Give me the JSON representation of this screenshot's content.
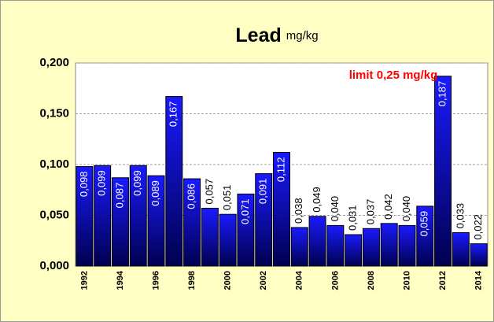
{
  "chart_data": {
    "type": "bar",
    "title": "Lead",
    "subtitle": "mg/kg",
    "annotation": "limit 0,25 mg/kg",
    "categories": [
      "1992",
      null,
      "1994",
      null,
      "1996",
      null,
      "1998",
      null,
      "2000",
      null,
      "2002",
      null,
      "2004",
      null,
      "2006",
      null,
      "2008",
      null,
      "2010",
      null,
      "2012",
      null,
      "2014"
    ],
    "values": [
      0.098,
      0.099,
      0.087,
      0.099,
      0.089,
      0.167,
      0.086,
      0.057,
      0.051,
      0.071,
      0.091,
      0.112,
      0.038,
      0.049,
      0.04,
      0.031,
      0.037,
      0.042,
      0.04,
      0.059,
      0.187,
      0.033,
      0.022
    ],
    "value_labels": [
      "0,098",
      "0,099",
      "0,087",
      "0,099",
      "0,089",
      "0,167",
      "0,086",
      "0,057",
      "0,051",
      "0,071",
      "0,091",
      "0,112",
      "0,038",
      "0,049",
      "0,040",
      "0,031",
      "0,037",
      "0,042",
      "0,040",
      "0,059",
      "0,187",
      "0,033",
      "0,022"
    ],
    "color": "#1010c8",
    "ylim": [
      0,
      0.2
    ],
    "yticks": [
      {
        "value": 0,
        "label": "0,000"
      },
      {
        "value": 0.05,
        "label": "0,050"
      },
      {
        "value": 0.1,
        "label": "0,100"
      },
      {
        "value": 0.15,
        "label": "0,150"
      },
      {
        "value": 0.2,
        "label": "0,200"
      }
    ],
    "grid": true
  }
}
